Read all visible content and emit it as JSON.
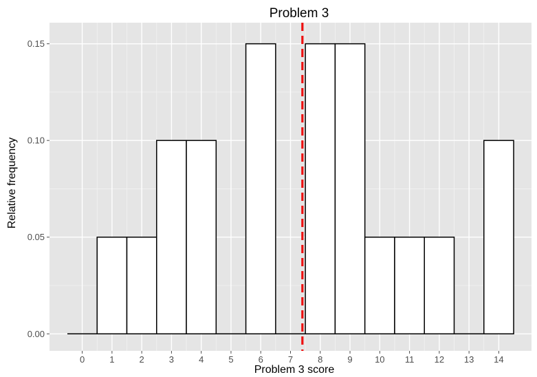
{
  "chart_data": {
    "type": "bar",
    "title": "Problem 3",
    "xlabel": "Problem 3 score",
    "ylabel": "Relative frequency",
    "x": [
      0,
      1,
      2,
      3,
      4,
      5,
      6,
      7,
      8,
      9,
      10,
      11,
      12,
      13,
      14
    ],
    "values": [
      0,
      0.05,
      0.05,
      0.1,
      0.1,
      0,
      0.15,
      0,
      0.15,
      0.15,
      0.05,
      0.05,
      0.05,
      0,
      0.1
    ],
    "xticks": [
      "0",
      "1",
      "2",
      "3",
      "4",
      "5",
      "6",
      "7",
      "8",
      "9",
      "10",
      "11",
      "12",
      "13",
      "14"
    ],
    "yticks": [
      "0.00",
      "0.05",
      "0.10",
      "0.15"
    ],
    "ytick_values": [
      0,
      0.05,
      0.1,
      0.15
    ],
    "xlim": [
      -0.5,
      14.5
    ],
    "ylim": [
      0,
      0.15
    ],
    "mean_line": {
      "x": 7.4,
      "color": "#ee1111",
      "style": "dashed"
    },
    "colors": {
      "panel": "#e5e5e5",
      "grid": "#ffffff",
      "bar_fill": "#ffffff",
      "bar_stroke": "#000000",
      "tick_text": "#4d4d4d"
    },
    "grid": true,
    "legend": "none"
  }
}
